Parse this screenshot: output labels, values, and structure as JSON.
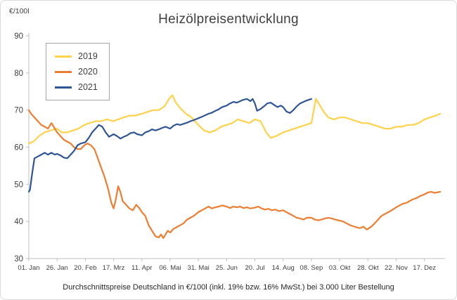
{
  "chart_data": {
    "type": "line",
    "title": "Heizölpreisentwicklung",
    "ylabel": "€/100l",
    "caption": "Durchschnittspreise Deutschland in €/100l (inkl. 19% bzw. 16%  MwSt.) bei 3.000 Liter Bestellung",
    "ylim": [
      30,
      90
    ],
    "xlim": [
      1,
      368
    ],
    "y_ticks": [
      30,
      40,
      50,
      60,
      70,
      80,
      90
    ],
    "x_ticks": [
      {
        "day": 1,
        "label": "01. Jan"
      },
      {
        "day": 26,
        "label": "26. Jan"
      },
      {
        "day": 51,
        "label": "20. Feb"
      },
      {
        "day": 76,
        "label": "17. Mrz"
      },
      {
        "day": 101,
        "label": "11. Apr"
      },
      {
        "day": 126,
        "label": "06. Mai"
      },
      {
        "day": 151,
        "label": "31. Mai"
      },
      {
        "day": 176,
        "label": "25. Jun"
      },
      {
        "day": 201,
        "label": "20. Jul"
      },
      {
        "day": 226,
        "label": "14. Aug"
      },
      {
        "day": 251,
        "label": "08. Sep"
      },
      {
        "day": 276,
        "label": "03. Okt"
      },
      {
        "day": 301,
        "label": "28. Okt"
      },
      {
        "day": 326,
        "label": "22. Nov"
      },
      {
        "day": 351,
        "label": "17. Dez"
      }
    ],
    "grid": false,
    "legend_position": "top-left",
    "axis_color": "#bfbfbf",
    "series": [
      {
        "name": "2019",
        "color": "#ffd24c",
        "points": [
          [
            1,
            61
          ],
          [
            5,
            61.5
          ],
          [
            10,
            63
          ],
          [
            15,
            64
          ],
          [
            20,
            64.5
          ],
          [
            26,
            65
          ],
          [
            30,
            64
          ],
          [
            35,
            64
          ],
          [
            40,
            64.5
          ],
          [
            45,
            65
          ],
          [
            50,
            66
          ],
          [
            55,
            66.5
          ],
          [
            60,
            67
          ],
          [
            65,
            67
          ],
          [
            70,
            67.5
          ],
          [
            76,
            67
          ],
          [
            80,
            67.5
          ],
          [
            85,
            68
          ],
          [
            90,
            68.5
          ],
          [
            95,
            68.5
          ],
          [
            101,
            69
          ],
          [
            106,
            69.5
          ],
          [
            111,
            70
          ],
          [
            116,
            70
          ],
          [
            121,
            71
          ],
          [
            125,
            73
          ],
          [
            128,
            74
          ],
          [
            131,
            72
          ],
          [
            135,
            70.5
          ],
          [
            140,
            69
          ],
          [
            145,
            68
          ],
          [
            151,
            66
          ],
          [
            156,
            64.5
          ],
          [
            161,
            64
          ],
          [
            166,
            64.5
          ],
          [
            171,
            65.5
          ],
          [
            176,
            66
          ],
          [
            181,
            66.5
          ],
          [
            186,
            67.5
          ],
          [
            191,
            67
          ],
          [
            196,
            66.5
          ],
          [
            201,
            67.5
          ],
          [
            206,
            67
          ],
          [
            211,
            64
          ],
          [
            215,
            62.5
          ],
          [
            220,
            63
          ],
          [
            226,
            64
          ],
          [
            231,
            64.5
          ],
          [
            236,
            65
          ],
          [
            241,
            65.5
          ],
          [
            246,
            66
          ],
          [
            251,
            66.5
          ],
          [
            255,
            73
          ],
          [
            258,
            71.5
          ],
          [
            262,
            69.5
          ],
          [
            266,
            68
          ],
          [
            271,
            67.5
          ],
          [
            276,
            68
          ],
          [
            281,
            68
          ],
          [
            286,
            67.5
          ],
          [
            291,
            67
          ],
          [
            296,
            66.5
          ],
          [
            301,
            66.5
          ],
          [
            306,
            66
          ],
          [
            311,
            65.5
          ],
          [
            316,
            65
          ],
          [
            321,
            65
          ],
          [
            326,
            65.5
          ],
          [
            331,
            65.5
          ],
          [
            336,
            66
          ],
          [
            341,
            66
          ],
          [
            346,
            66.5
          ],
          [
            351,
            67.5
          ],
          [
            356,
            68
          ],
          [
            361,
            68.5
          ],
          [
            365,
            69
          ]
        ]
      },
      {
        "name": "2020",
        "color": "#ed7d31",
        "points": [
          [
            1,
            70
          ],
          [
            3,
            69
          ],
          [
            6,
            68
          ],
          [
            9,
            67
          ],
          [
            12,
            66
          ],
          [
            15,
            65.5
          ],
          [
            18,
            65
          ],
          [
            21,
            66.5
          ],
          [
            24,
            65
          ],
          [
            26,
            64
          ],
          [
            29,
            63
          ],
          [
            32,
            62
          ],
          [
            35,
            61.5
          ],
          [
            38,
            61
          ],
          [
            41,
            60
          ],
          [
            44,
            59.5
          ],
          [
            47,
            59.5
          ],
          [
            50,
            60.5
          ],
          [
            53,
            61
          ],
          [
            56,
            60.5
          ],
          [
            59,
            59.5
          ],
          [
            62,
            57
          ],
          [
            65,
            54.5
          ],
          [
            68,
            52
          ],
          [
            71,
            49
          ],
          [
            74,
            45
          ],
          [
            76,
            43.5
          ],
          [
            78,
            46
          ],
          [
            80,
            49.5
          ],
          [
            82,
            48
          ],
          [
            84,
            45.5
          ],
          [
            87,
            44.5
          ],
          [
            90,
            43.5
          ],
          [
            93,
            43
          ],
          [
            96,
            44.5
          ],
          [
            99,
            43.5
          ],
          [
            101,
            42.5
          ],
          [
            104,
            41.5
          ],
          [
            107,
            39
          ],
          [
            110,
            37.5
          ],
          [
            113,
            36
          ],
          [
            116,
            35.7
          ],
          [
            118,
            36.5
          ],
          [
            120,
            35.5
          ],
          [
            122,
            36.5
          ],
          [
            124,
            37.5
          ],
          [
            126,
            37
          ],
          [
            129,
            38
          ],
          [
            132,
            38.5
          ],
          [
            135,
            39
          ],
          [
            138,
            39.5
          ],
          [
            141,
            40.5
          ],
          [
            144,
            41
          ],
          [
            147,
            41.5
          ],
          [
            151,
            42.5
          ],
          [
            154,
            43
          ],
          [
            157,
            43.5
          ],
          [
            160,
            44
          ],
          [
            163,
            43.5
          ],
          [
            166,
            43.8
          ],
          [
            169,
            44
          ],
          [
            172,
            44.3
          ],
          [
            176,
            44
          ],
          [
            179,
            43.6
          ],
          [
            182,
            44
          ],
          [
            185,
            43.8
          ],
          [
            188,
            44
          ],
          [
            191,
            43.6
          ],
          [
            194,
            43.8
          ],
          [
            197,
            43.5
          ],
          [
            201,
            43.7
          ],
          [
            204,
            44
          ],
          [
            207,
            43.5
          ],
          [
            210,
            43.2
          ],
          [
            213,
            43.4
          ],
          [
            216,
            43
          ],
          [
            219,
            43.2
          ],
          [
            222,
            42.8
          ],
          [
            226,
            43
          ],
          [
            229,
            42.5
          ],
          [
            232,
            42
          ],
          [
            235,
            41.5
          ],
          [
            238,
            41
          ],
          [
            241,
            40.8
          ],
          [
            244,
            40.5
          ],
          [
            247,
            41
          ],
          [
            251,
            41
          ],
          [
            254,
            40.5
          ],
          [
            257,
            40.3
          ],
          [
            260,
            40.5
          ],
          [
            263,
            40.8
          ],
          [
            266,
            41
          ],
          [
            269,
            40.8
          ],
          [
            272,
            40.5
          ],
          [
            276,
            40.2
          ],
          [
            279,
            40
          ],
          [
            282,
            39.5
          ],
          [
            285,
            39
          ],
          [
            288,
            38.7
          ],
          [
            291,
            38.4
          ],
          [
            294,
            38.2
          ],
          [
            297,
            38.6
          ],
          [
            300,
            37.8
          ],
          [
            304,
            38.6
          ],
          [
            307,
            39.5
          ],
          [
            310,
            40.5
          ],
          [
            313,
            41.5
          ],
          [
            316,
            42
          ],
          [
            319,
            42.5
          ],
          [
            322,
            43
          ],
          [
            326,
            43.8
          ],
          [
            329,
            44.3
          ],
          [
            332,
            44.8
          ],
          [
            335,
            45
          ],
          [
            338,
            45.5
          ],
          [
            341,
            46
          ],
          [
            344,
            46.3
          ],
          [
            347,
            46.8
          ],
          [
            351,
            47.3
          ],
          [
            354,
            47.8
          ],
          [
            357,
            48
          ],
          [
            360,
            47.7
          ],
          [
            365,
            48
          ]
        ]
      },
      {
        "name": "2021",
        "color": "#2f5597",
        "points": [
          [
            1,
            48
          ],
          [
            2,
            48.5
          ],
          [
            4,
            53
          ],
          [
            6,
            57
          ],
          [
            9,
            57.5
          ],
          [
            12,
            58
          ],
          [
            15,
            58.5
          ],
          [
            18,
            58
          ],
          [
            21,
            58.5
          ],
          [
            24,
            58
          ],
          [
            26,
            58.2
          ],
          [
            29,
            57.8
          ],
          [
            32,
            57.2
          ],
          [
            35,
            57
          ],
          [
            38,
            58
          ],
          [
            41,
            59
          ],
          [
            44,
            60.5
          ],
          [
            47,
            61
          ],
          [
            51,
            61.3
          ],
          [
            54,
            62.5
          ],
          [
            57,
            64
          ],
          [
            60,
            65
          ],
          [
            63,
            66
          ],
          [
            66,
            65.5
          ],
          [
            69,
            64
          ],
          [
            72,
            62.8
          ],
          [
            76,
            63.5
          ],
          [
            79,
            63
          ],
          [
            82,
            62.3
          ],
          [
            85,
            62.8
          ],
          [
            88,
            63.2
          ],
          [
            91,
            63.8
          ],
          [
            94,
            64
          ],
          [
            97,
            63.5
          ],
          [
            101,
            63.2
          ],
          [
            104,
            64
          ],
          [
            107,
            64.3
          ],
          [
            110,
            64.8
          ],
          [
            113,
            64.5
          ],
          [
            116,
            64.8
          ],
          [
            119,
            65.2
          ],
          [
            122,
            65.5
          ],
          [
            126,
            65
          ],
          [
            129,
            65.8
          ],
          [
            132,
            66.2
          ],
          [
            135,
            66
          ],
          [
            138,
            66.3
          ],
          [
            141,
            66.6
          ],
          [
            144,
            67
          ],
          [
            147,
            67.3
          ],
          [
            151,
            67.8
          ],
          [
            154,
            68.2
          ],
          [
            157,
            68.6
          ],
          [
            160,
            69
          ],
          [
            163,
            69.3
          ],
          [
            166,
            69.8
          ],
          [
            169,
            70.2
          ],
          [
            172,
            70.8
          ],
          [
            176,
            71.2
          ],
          [
            179,
            71.8
          ],
          [
            182,
            72.2
          ],
          [
            185,
            72
          ],
          [
            188,
            72.4
          ],
          [
            191,
            72.8
          ],
          [
            194,
            73
          ],
          [
            197,
            72.4
          ],
          [
            199,
            73
          ],
          [
            201,
            71.8
          ],
          [
            203,
            69.8
          ],
          [
            206,
            70.3
          ],
          [
            209,
            71
          ],
          [
            212,
            71.8
          ],
          [
            215,
            72
          ],
          [
            218,
            71.4
          ],
          [
            221,
            70.8
          ],
          [
            224,
            71.2
          ],
          [
            226,
            70.8
          ],
          [
            229,
            69.6
          ],
          [
            232,
            69.2
          ],
          [
            235,
            70
          ],
          [
            238,
            71
          ],
          [
            241,
            71.8
          ],
          [
            244,
            72.2
          ],
          [
            247,
            72.6
          ],
          [
            251,
            73
          ]
        ]
      }
    ]
  }
}
